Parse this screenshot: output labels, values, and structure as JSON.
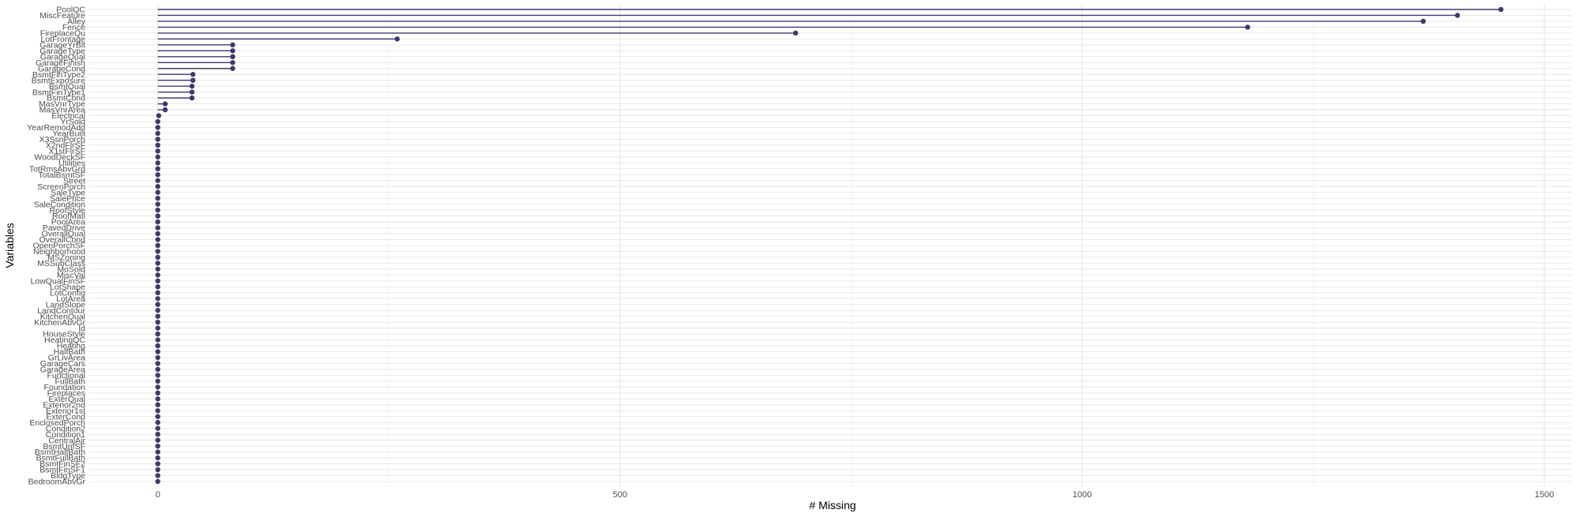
{
  "chart_data": {
    "type": "lollipop",
    "orientation": "horizontal",
    "title": "",
    "xlabel": "# Missing",
    "ylabel": "Variables",
    "xlim": [
      -75,
      1530
    ],
    "x_ticks": [
      0,
      500,
      1000,
      1500
    ],
    "grid": true,
    "legend": "none",
    "color": "#3b3a6e",
    "categories": [
      "PoolQC",
      "MiscFeature",
      "Alley",
      "Fence",
      "FireplaceQu",
      "LotFrontage",
      "GarageYrBlt",
      "GarageType",
      "GarageQual",
      "GarageFinish",
      "GarageCond",
      "BsmtFinType2",
      "BsmtExposure",
      "BsmtQual",
      "BsmtFinType1",
      "BsmtCond",
      "MasVnrType",
      "MasVnrArea",
      "Electrical",
      "YrSold",
      "YearRemodAdd",
      "YearBuilt",
      "X3SsnPorch",
      "X2ndFlrSF",
      "X1stFlrSF",
      "WoodDeckSF",
      "Utilities",
      "TotRmsAbvGrd",
      "TotalBsmtSF",
      "Street",
      "ScreenPorch",
      "SaleType",
      "SalePrice",
      "SaleCondition",
      "RoofStyle",
      "RoofMatl",
      "PoolArea",
      "PavedDrive",
      "OverallQual",
      "OverallCond",
      "OpenPorchSF",
      "Neighborhood",
      "MSZoning",
      "MSSubClass",
      "MoSold",
      "MiscVal",
      "LowQualFinSF",
      "LotShape",
      "LotConfig",
      "LotArea",
      "LandSlope",
      "LandContour",
      "KitchenQual",
      "KitchenAbvGr",
      "Id",
      "HouseStyle",
      "HeatingQC",
      "Heating",
      "HalfBath",
      "GrLivArea",
      "GarageCars",
      "GarageArea",
      "Functional",
      "FullBath",
      "Foundation",
      "Fireplaces",
      "ExterQual",
      "Exterior2nd",
      "Exterior1st",
      "ExterCond",
      "EnclosedPorch",
      "Condition2",
      "Condition1",
      "CentralAir",
      "BsmtUnfSF",
      "BsmtHalfBath",
      "BsmtFullBath",
      "BsmtFinSF2",
      "BsmtFinSF1",
      "BldgType",
      "BedroomAbvGr"
    ],
    "values": [
      1453,
      1406,
      1369,
      1179,
      690,
      259,
      81,
      81,
      81,
      81,
      81,
      38,
      38,
      37,
      37,
      37,
      8,
      8,
      1,
      0,
      0,
      0,
      0,
      0,
      0,
      0,
      0,
      0,
      0,
      0,
      0,
      0,
      0,
      0,
      0,
      0,
      0,
      0,
      0,
      0,
      0,
      0,
      0,
      0,
      0,
      0,
      0,
      0,
      0,
      0,
      0,
      0,
      0,
      0,
      0,
      0,
      0,
      0,
      0,
      0,
      0,
      0,
      0,
      0,
      0,
      0,
      0,
      0,
      0,
      0,
      0,
      0,
      0,
      0,
      0,
      0,
      0,
      0,
      0,
      0,
      0
    ]
  }
}
